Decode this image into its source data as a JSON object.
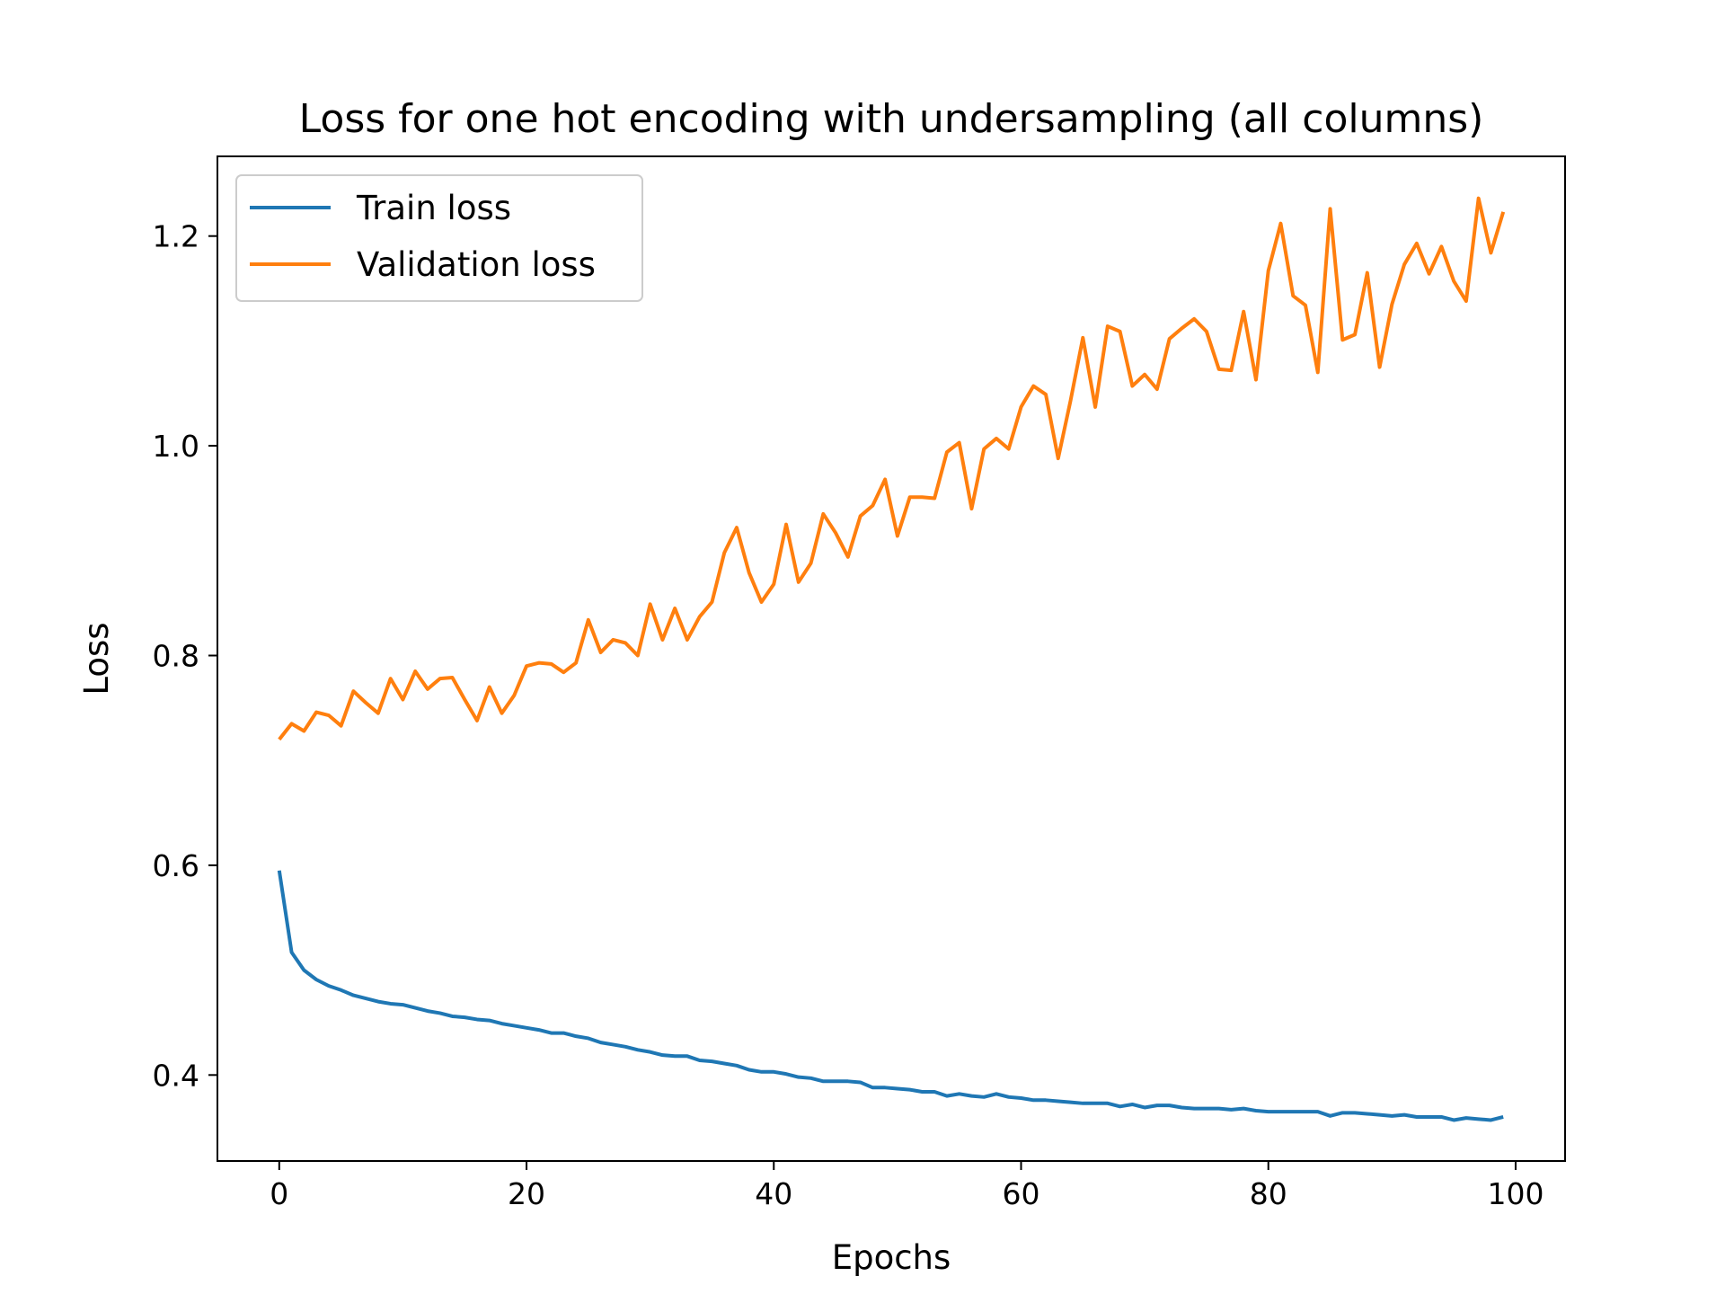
{
  "chart_data": {
    "type": "line",
    "title": "Loss for one hot encoding with undersampling (all columns)",
    "xlabel": "Epochs",
    "ylabel": "Loss",
    "xlim": [
      -5,
      104
    ],
    "ylim": [
      0.318,
      1.276
    ],
    "xticks": [
      0,
      20,
      40,
      60,
      80,
      100
    ],
    "yticks": [
      0.4,
      0.6,
      0.8,
      1.0,
      1.2
    ],
    "xtick_labels": [
      "0",
      "20",
      "40",
      "60",
      "80",
      "100"
    ],
    "ytick_labels": [
      "0.4",
      "0.6",
      "0.8",
      "1.0",
      "1.2"
    ],
    "legend_position": "top-left",
    "grid": false,
    "series": [
      {
        "name": "Train loss",
        "color": "#1f77b4",
        "values": [
          0.595,
          0.517,
          0.5,
          0.491,
          0.485,
          0.481,
          0.476,
          0.473,
          0.47,
          0.468,
          0.467,
          0.464,
          0.461,
          0.459,
          0.456,
          0.455,
          0.453,
          0.452,
          0.449,
          0.447,
          0.445,
          0.443,
          0.44,
          0.44,
          0.437,
          0.435,
          0.431,
          0.429,
          0.427,
          0.424,
          0.422,
          0.419,
          0.418,
          0.418,
          0.414,
          0.413,
          0.411,
          0.409,
          0.405,
          0.403,
          0.403,
          0.401,
          0.398,
          0.397,
          0.394,
          0.394,
          0.394,
          0.393,
          0.388,
          0.388,
          0.387,
          0.386,
          0.384,
          0.384,
          0.38,
          0.382,
          0.38,
          0.379,
          0.382,
          0.379,
          0.378,
          0.376,
          0.376,
          0.375,
          0.374,
          0.373,
          0.373,
          0.373,
          0.37,
          0.372,
          0.369,
          0.371,
          0.371,
          0.369,
          0.368,
          0.368,
          0.368,
          0.367,
          0.368,
          0.366,
          0.365,
          0.365,
          0.365,
          0.365,
          0.365,
          0.361,
          0.364,
          0.364,
          0.363,
          0.362,
          0.361,
          0.362,
          0.36,
          0.36,
          0.36,
          0.357,
          0.359,
          0.358,
          0.357,
          0.36
        ]
      },
      {
        "name": "Validation loss",
        "color": "#ff7f0e",
        "values": [
          0.72,
          0.735,
          0.728,
          0.746,
          0.743,
          0.733,
          0.766,
          0.755,
          0.745,
          0.778,
          0.758,
          0.785,
          0.768,
          0.778,
          0.779,
          0.758,
          0.738,
          0.77,
          0.745,
          0.762,
          0.79,
          0.793,
          0.792,
          0.784,
          0.793,
          0.834,
          0.803,
          0.815,
          0.812,
          0.8,
          0.849,
          0.815,
          0.845,
          0.815,
          0.837,
          0.851,
          0.898,
          0.922,
          0.879,
          0.851,
          0.868,
          0.925,
          0.87,
          0.888,
          0.935,
          0.917,
          0.894,
          0.933,
          0.943,
          0.968,
          0.914,
          0.951,
          0.951,
          0.95,
          0.994,
          1.003,
          0.94,
          0.997,
          1.007,
          0.997,
          1.037,
          1.057,
          1.049,
          0.988,
          1.043,
          1.103,
          1.037,
          1.114,
          1.109,
          1.057,
          1.068,
          1.054,
          1.102,
          1.112,
          1.121,
          1.109,
          1.073,
          1.072,
          1.128,
          1.063,
          1.167,
          1.212,
          1.143,
          1.134,
          1.07,
          1.226,
          1.101,
          1.106,
          1.165,
          1.075,
          1.135,
          1.173,
          1.193,
          1.164,
          1.19,
          1.157,
          1.138,
          1.236,
          1.184,
          1.223
        ]
      }
    ]
  }
}
